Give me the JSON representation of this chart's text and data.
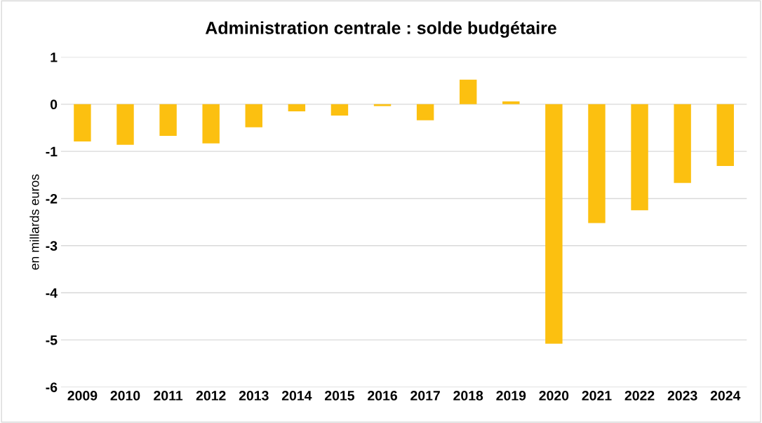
{
  "chart_data": {
    "type": "bar",
    "title": "Administration centrale : solde budgétaire",
    "ylabel": "en millards euros",
    "categories": [
      "2009",
      "2010",
      "2011",
      "2012",
      "2013",
      "2014",
      "2015",
      "2016",
      "2017",
      "2018",
      "2019",
      "2020",
      "2021",
      "2022",
      "2023",
      "2024"
    ],
    "values": [
      -0.79,
      -0.86,
      -0.67,
      -0.83,
      -0.49,
      -0.15,
      -0.24,
      -0.04,
      -0.34,
      0.52,
      0.06,
      -5.08,
      -2.52,
      -2.25,
      -1.67,
      -1.31
    ],
    "color": "#fcc010",
    "ylim": [
      -6,
      1
    ],
    "yticks": [
      -6,
      -5,
      -4,
      -3,
      -2,
      -1,
      0,
      1
    ],
    "grid": "y",
    "legend": false
  }
}
